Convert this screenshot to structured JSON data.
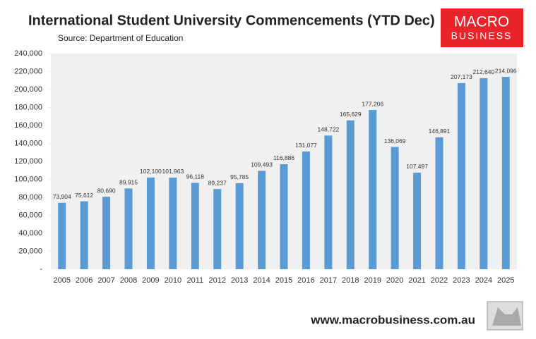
{
  "chart_data": {
    "type": "bar",
    "title": "International Student University Commencements (YTD Dec)",
    "subtitle": "Source: Department of Education",
    "categories": [
      "2005",
      "2006",
      "2007",
      "2008",
      "2009",
      "2010",
      "2011",
      "2012",
      "2013",
      "2014",
      "2015",
      "2016",
      "2017",
      "2018",
      "2019",
      "2020",
      "2021",
      "2022",
      "2023",
      "2024",
      "2025"
    ],
    "values": [
      73904,
      75612,
      80690,
      89915,
      102100,
      101963,
      96118,
      89237,
      95785,
      109493,
      116886,
      131077,
      148722,
      165629,
      177206,
      136069,
      107497,
      146891,
      207173,
      212640,
      214096
    ],
    "value_labels": [
      "73,904",
      "75,612",
      "80,690",
      "89,915",
      "102,100",
      "101,963",
      "96,118",
      "89,237",
      "95,785",
      "109,493",
      "116,886",
      "131,077",
      "148,722",
      "165,629",
      "177,206",
      "136,069",
      "107,497",
      "146,891",
      "207,173",
      "212,640",
      "214,096"
    ],
    "color": "#5b9bd5",
    "ylim": [
      0,
      240000
    ],
    "yticks": [
      {
        "value": 0,
        "label": "-"
      },
      {
        "value": 20000,
        "label": "20,000"
      },
      {
        "value": 40000,
        "label": "40,000"
      },
      {
        "value": 60000,
        "label": "60,000"
      },
      {
        "value": 80000,
        "label": "80,000"
      },
      {
        "value": 100000,
        "label": "100,000"
      },
      {
        "value": 120000,
        "label": "120,000"
      },
      {
        "value": 140000,
        "label": "140,000"
      },
      {
        "value": 160000,
        "label": "160,000"
      },
      {
        "value": 180000,
        "label": "180,000"
      },
      {
        "value": 200000,
        "label": "200,000"
      },
      {
        "value": 220000,
        "label": "220,000"
      },
      {
        "value": 240000,
        "label": "240,000"
      }
    ],
    "grid": false
  },
  "logo": {
    "line1": "MACRO",
    "line2": "BUSINESS"
  },
  "footer": "www.macrobusiness.com.au"
}
